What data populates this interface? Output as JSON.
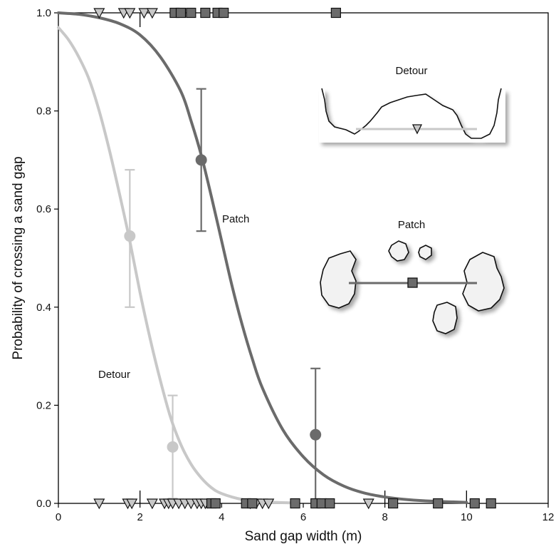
{
  "chart_data": {
    "type": "scatter",
    "title": "",
    "xlabel": "Sand gap width (m)",
    "ylabel": "Probability of crossing a sand gap",
    "xlim": [
      0,
      12
    ],
    "ylim": [
      0,
      1
    ],
    "x_ticks": [
      "0",
      "2",
      "4",
      "6",
      "8",
      "10",
      "12"
    ],
    "y_ticks": [
      "0.0",
      "0.2",
      "0.4",
      "0.6",
      "0.8",
      "1.0"
    ],
    "grid": false,
    "legend": "none",
    "annotations": {
      "detour_curve_label": "Detour",
      "patch_curve_label": "Patch",
      "detour_inset_label": "Detour",
      "patch_inset_label": "Patch"
    },
    "series": [
      {
        "name": "Detour",
        "color": "#c8c8c8",
        "marker": "triangle-down",
        "curve": [
          [
            0,
            0.97
          ],
          [
            0.25,
            0.945
          ],
          [
            0.5,
            0.91
          ],
          [
            0.75,
            0.865
          ],
          [
            1.0,
            0.8
          ],
          [
            1.25,
            0.72
          ],
          [
            1.5,
            0.63
          ],
          [
            1.75,
            0.535
          ],
          [
            2.0,
            0.43
          ],
          [
            2.25,
            0.335
          ],
          [
            2.5,
            0.25
          ],
          [
            2.75,
            0.175
          ],
          [
            3.0,
            0.12
          ],
          [
            3.25,
            0.08
          ],
          [
            3.5,
            0.052
          ],
          [
            3.75,
            0.032
          ],
          [
            4.0,
            0.02
          ],
          [
            4.5,
            0.008
          ],
          [
            5.0,
            0.003
          ],
          [
            5.75,
            0.001
          ]
        ],
        "binned_means": [
          {
            "x": 1.75,
            "y": 0.545,
            "low": 0.4,
            "high": 0.68
          },
          {
            "x": 2.8,
            "y": 0.115,
            "low": 0.01,
            "high": 0.22
          }
        ],
        "crossed_obs_x": [
          1.0,
          1.6,
          1.75,
          2.1,
          2.3
        ],
        "failed_obs_x": [
          1.0,
          1.7,
          1.8,
          2.3,
          2.6,
          2.7,
          2.8,
          2.95,
          3.1,
          3.25,
          3.4,
          3.5,
          3.6,
          4.7,
          4.85,
          5.0,
          5.15,
          7.6
        ]
      },
      {
        "name": "Patch",
        "color": "#6b6b6b",
        "marker": "square",
        "curve": [
          [
            0,
            1.0
          ],
          [
            0.5,
            0.997
          ],
          [
            1.0,
            0.99
          ],
          [
            1.5,
            0.978
          ],
          [
            2.0,
            0.955
          ],
          [
            2.5,
            0.91
          ],
          [
            3.0,
            0.84
          ],
          [
            3.25,
            0.78
          ],
          [
            3.5,
            0.71
          ],
          [
            3.75,
            0.625
          ],
          [
            4.0,
            0.535
          ],
          [
            4.25,
            0.445
          ],
          [
            4.5,
            0.365
          ],
          [
            4.75,
            0.295
          ],
          [
            5.0,
            0.235
          ],
          [
            5.5,
            0.15
          ],
          [
            6.0,
            0.095
          ],
          [
            6.5,
            0.058
          ],
          [
            7.0,
            0.035
          ],
          [
            7.5,
            0.021
          ],
          [
            8.0,
            0.013
          ],
          [
            8.5,
            0.008
          ],
          [
            9.0,
            0.005
          ],
          [
            10.0,
            0.002
          ]
        ],
        "binned_means": [
          {
            "x": 3.5,
            "y": 0.7,
            "low": 0.555,
            "high": 0.845
          },
          {
            "x": 6.3,
            "y": 0.14,
            "low": 0.0,
            "high": 0.275
          }
        ],
        "crossed_obs_x": [
          2.85,
          3.0,
          3.25,
          3.6,
          3.9,
          4.05,
          6.8
        ],
        "failed_obs_x": [
          3.75,
          3.85,
          4.6,
          4.75,
          5.8,
          6.3,
          6.45,
          6.65,
          8.2,
          9.3,
          10.2,
          10.6
        ]
      }
    ],
    "reference_ticks_x": [
      2.0,
      8.0,
      10.0
    ]
  }
}
